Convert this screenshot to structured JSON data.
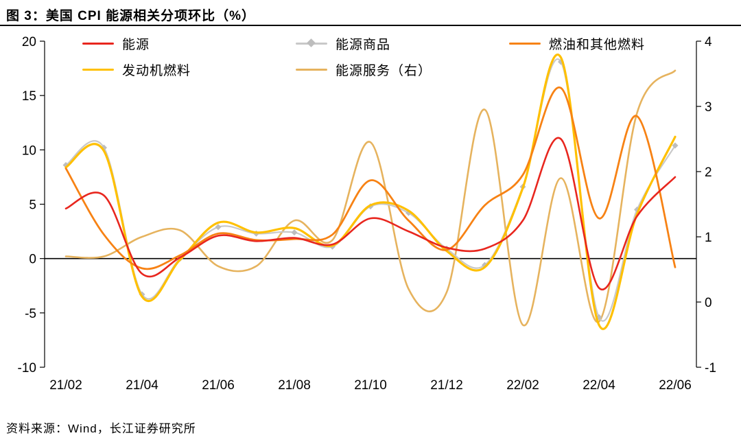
{
  "title": "图 3：美国 CPI 能源相关分项环比（%）",
  "source": "资料来源：Wind，长江证券研究所",
  "chart_data": {
    "type": "line",
    "title": "美国 CPI 能源相关分项环比（%）",
    "x": [
      "21/02",
      "21/03",
      "21/04",
      "21/05",
      "21/06",
      "21/07",
      "21/08",
      "21/09",
      "21/10",
      "21/11",
      "21/12",
      "22/01",
      "22/02",
      "22/03",
      "22/04",
      "22/05",
      "22/06"
    ],
    "x_tick_labels": [
      "21/02",
      "21/04",
      "21/06",
      "21/08",
      "21/10",
      "21/12",
      "22/02",
      "22/04",
      "22/06"
    ],
    "axes": {
      "left": {
        "min": -10,
        "max": 20,
        "ticks": [
          20,
          15,
          10,
          5,
          0,
          -5,
          -10
        ]
      },
      "right": {
        "min": -1,
        "max": 4,
        "ticks": [
          4,
          3,
          2,
          1,
          0,
          -1
        ]
      }
    },
    "grid": "off",
    "legend_position": "top",
    "legend_rows": [
      [
        0,
        1,
        2
      ],
      [
        3,
        4
      ]
    ],
    "series": [
      {
        "id": "energy",
        "name": "能源",
        "color": "#e8261e",
        "axis": "left",
        "marker": "none",
        "values": [
          4.6,
          5.8,
          -1.4,
          0.1,
          2.1,
          1.6,
          1.9,
          1.3,
          3.7,
          2.5,
          1.0,
          0.9,
          3.5,
          11.0,
          -2.7,
          3.9,
          7.5
        ]
      },
      {
        "id": "energy-commodities",
        "name": "能源商品",
        "color": "#c8c8c8",
        "axis": "left",
        "marker": "diamond",
        "marker_color": "#bdbdbd",
        "values": [
          8.6,
          10.2,
          -3.3,
          0.0,
          2.9,
          2.3,
          2.4,
          1.1,
          4.8,
          4.2,
          0.9,
          -0.6,
          6.6,
          18.1,
          -5.4,
          4.5,
          10.4
        ]
      },
      {
        "id": "fuel-oil",
        "name": "燃油和其他燃料",
        "color": "#f78214",
        "axis": "left",
        "marker": "none",
        "values": [
          8.3,
          2.2,
          -0.9,
          0.3,
          2.3,
          1.7,
          1.8,
          2.2,
          7.2,
          3.5,
          0.8,
          4.9,
          7.7,
          15.7,
          3.7,
          13.1,
          -0.8
        ]
      },
      {
        "id": "motor-fuel",
        "name": "发动机燃料",
        "color": "#ffc000",
        "axis": "left",
        "marker": "none",
        "values": [
          8.4,
          9.9,
          -3.5,
          -0.1,
          3.3,
          2.4,
          2.8,
          1.2,
          4.9,
          4.4,
          0.7,
          -0.8,
          6.5,
          18.5,
          -6.1,
          4.1,
          11.2
        ]
      },
      {
        "id": "energy-services",
        "name": "能源服务（右）",
        "color": "#e6b35e",
        "axis": "right",
        "marker": "none",
        "values": [
          0.7,
          0.7,
          1.0,
          1.1,
          0.55,
          0.55,
          1.25,
          0.95,
          2.45,
          0.2,
          0.15,
          2.95,
          -0.35,
          1.9,
          -0.3,
          2.9,
          3.55
        ]
      }
    ],
    "draw_order": [
      "energy-services",
      "energy-commodities",
      "motor-fuel",
      "fuel-oil",
      "energy"
    ]
  }
}
